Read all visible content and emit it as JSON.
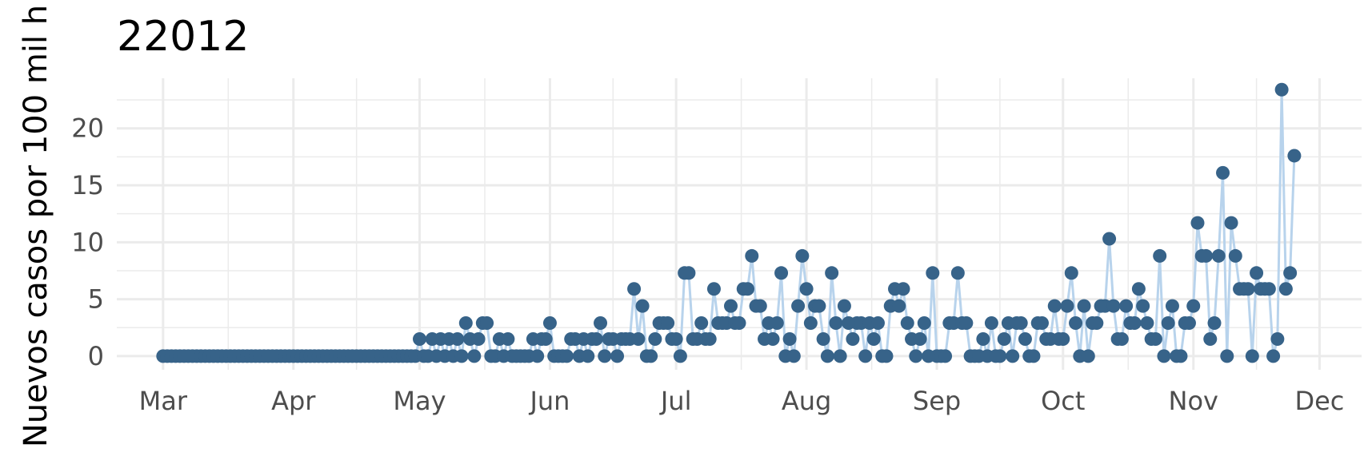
{
  "chart_data": {
    "type": "line",
    "title": "22012",
    "xlabel": "",
    "ylabel": "Nuevos casos por 100 mil h",
    "x_range": [
      "2020-02-19",
      "2020-12-11"
    ],
    "ylim": [
      -1.2,
      24.4
    ],
    "y_ticks": [
      0,
      5,
      10,
      15,
      20
    ],
    "x_ticks": [
      {
        "date": "2020-03-01",
        "label": "Mar"
      },
      {
        "date": "2020-04-01",
        "label": "Apr"
      },
      {
        "date": "2020-05-01",
        "label": "May"
      },
      {
        "date": "2020-06-01",
        "label": "Jun"
      },
      {
        "date": "2020-07-01",
        "label": "Jul"
      },
      {
        "date": "2020-08-01",
        "label": "Aug"
      },
      {
        "date": "2020-09-01",
        "label": "Sep"
      },
      {
        "date": "2020-10-01",
        "label": "Oct"
      },
      {
        "date": "2020-11-01",
        "label": "Nov"
      },
      {
        "date": "2020-12-01",
        "label": "Dec"
      }
    ],
    "grid": true,
    "colors": {
      "line": "#b8d3ec",
      "point": "#376389",
      "grid": "#ebebeb"
    },
    "start_date": "2020-03-01",
    "values": [
      0,
      0,
      0,
      0,
      0,
      0,
      0,
      0,
      0,
      0,
      0,
      0,
      0,
      0,
      0,
      0,
      0,
      0,
      0,
      0,
      0,
      0,
      0,
      0,
      0,
      0,
      0,
      0,
      0,
      0,
      0,
      0,
      0,
      0,
      0,
      0,
      0,
      0,
      0,
      0,
      0,
      0,
      0,
      0,
      0,
      0,
      0,
      0,
      0,
      0,
      0,
      0,
      0,
      0,
      0,
      0,
      0,
      0,
      0,
      0,
      0,
      1.5,
      0,
      0,
      1.5,
      0,
      1.5,
      0,
      1.5,
      0,
      1.5,
      0,
      2.9,
      1.5,
      0,
      1.5,
      2.9,
      2.9,
      0,
      0,
      1.5,
      0,
      1.5,
      0,
      0,
      0,
      0,
      0,
      1.5,
      0,
      1.5,
      1.5,
      2.9,
      0,
      0,
      0,
      0,
      1.5,
      1.5,
      0,
      1.5,
      0,
      1.5,
      1.5,
      2.9,
      0,
      1.5,
      1.5,
      0,
      1.5,
      1.5,
      1.5,
      5.9,
      1.5,
      4.4,
      0,
      0,
      1.5,
      2.9,
      2.9,
      2.9,
      1.5,
      1.5,
      0,
      7.3,
      7.3,
      1.5,
      1.5,
      2.9,
      1.5,
      1.5,
      5.9,
      2.9,
      2.9,
      2.9,
      4.4,
      2.9,
      2.9,
      5.9,
      5.9,
      8.8,
      4.4,
      4.4,
      1.5,
      2.9,
      1.5,
      2.9,
      7.3,
      0,
      1.5,
      0,
      4.4,
      8.8,
      5.9,
      2.9,
      4.4,
      4.4,
      1.5,
      0,
      7.3,
      2.9,
      0,
      4.4,
      2.9,
      1.5,
      2.9,
      2.9,
      0,
      2.9,
      1.5,
      2.9,
      0,
      0,
      4.4,
      5.9,
      4.4,
      5.9,
      2.9,
      1.5,
      0,
      1.5,
      2.9,
      0,
      7.3,
      0,
      0,
      0,
      2.9,
      2.9,
      7.3,
      2.9,
      2.9,
      0,
      0,
      0,
      1.5,
      0,
      2.9,
      0,
      0,
      1.5,
      2.9,
      0,
      2.9,
      2.9,
      1.5,
      0,
      0,
      2.9,
      2.9,
      1.5,
      1.5,
      4.4,
      1.5,
      1.5,
      4.4,
      7.3,
      2.9,
      0,
      4.4,
      0,
      2.9,
      2.9,
      4.4,
      4.4,
      10.3,
      4.4,
      1.5,
      1.5,
      4.4,
      2.9,
      2.9,
      5.9,
      4.4,
      2.9,
      1.5,
      1.5,
      8.8,
      0,
      2.9,
      4.4,
      0,
      0,
      2.9,
      2.9,
      4.4,
      11.7,
      8.8,
      8.8,
      1.5,
      2.9,
      8.8,
      16.1,
      0,
      11.7,
      8.8,
      5.9,
      5.9,
      5.9,
      0,
      7.3,
      5.9,
      5.9,
      5.9,
      0,
      1.5,
      23.4,
      5.9,
      7.3,
      17.6
    ]
  }
}
